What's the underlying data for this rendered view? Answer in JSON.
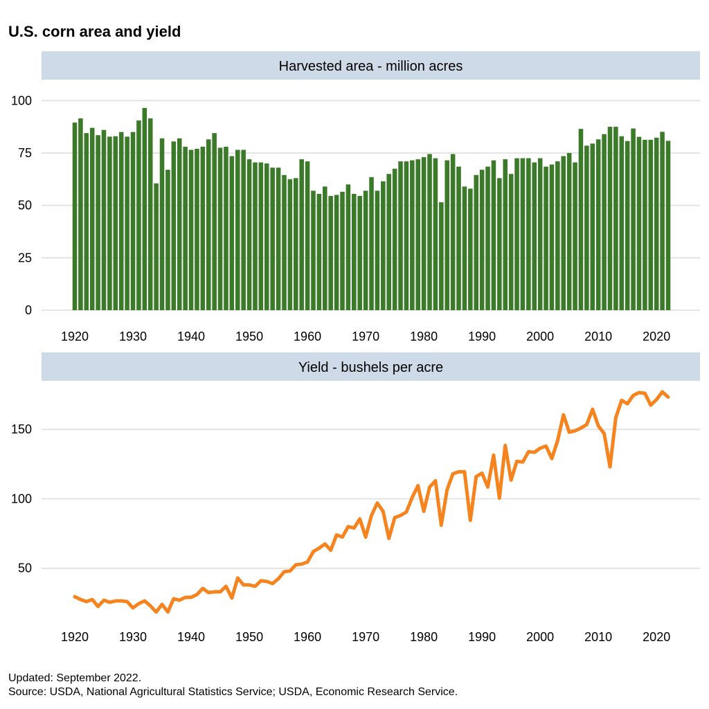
{
  "title": "U.S. corn area and yield",
  "footnote": {
    "updated": "Updated: September 2022.",
    "source": "Source: USDA, National Agricultural Statistics Service; USDA, Economic Research Service."
  },
  "colors": {
    "area_bar": "#3a7a28",
    "yield_line": "#f5841f",
    "strip": "#cfdae8",
    "grid": "#e4e4e4"
  },
  "chart_data": [
    {
      "type": "bar",
      "title": "Harvested area - million acres",
      "xlabel": "",
      "ylabel": "",
      "ylim": [
        0,
        110
      ],
      "yticks": [
        0,
        25,
        50,
        75,
        100
      ],
      "xticks": [
        1920,
        1930,
        1940,
        1950,
        1960,
        1970,
        1980,
        1990,
        2000,
        2010,
        2020
      ],
      "x": [
        1920,
        1921,
        1922,
        1923,
        1924,
        1925,
        1926,
        1927,
        1928,
        1929,
        1930,
        1931,
        1932,
        1933,
        1934,
        1935,
        1936,
        1937,
        1938,
        1939,
        1940,
        1941,
        1942,
        1943,
        1944,
        1945,
        1946,
        1947,
        1948,
        1949,
        1950,
        1951,
        1952,
        1953,
        1954,
        1955,
        1956,
        1957,
        1958,
        1959,
        1960,
        1961,
        1962,
        1963,
        1964,
        1965,
        1966,
        1967,
        1968,
        1969,
        1970,
        1971,
        1972,
        1973,
        1974,
        1975,
        1976,
        1977,
        1978,
        1979,
        1980,
        1981,
        1982,
        1983,
        1984,
        1985,
        1986,
        1987,
        1988,
        1989,
        1990,
        1991,
        1992,
        1993,
        1994,
        1995,
        1996,
        1997,
        1998,
        1999,
        2000,
        2001,
        2002,
        2003,
        2004,
        2005,
        2006,
        2007,
        2008,
        2009,
        2010,
        2011,
        2012,
        2013,
        2014,
        2015,
        2016,
        2017,
        2018,
        2019,
        2020,
        2021,
        2022
      ],
      "values": [
        89.5,
        91.5,
        84.5,
        87,
        83.5,
        86,
        82.8,
        83,
        85,
        82.8,
        85,
        90.5,
        96.5,
        91.5,
        60.5,
        82,
        67,
        80.5,
        82,
        78,
        76.5,
        77,
        78,
        81.5,
        84.5,
        77.5,
        78,
        73.5,
        76.5,
        76.5,
        72,
        70.5,
        70.5,
        70,
        68,
        68,
        64.5,
        62.5,
        63,
        72,
        71,
        57,
        55.5,
        59,
        54.5,
        55,
        56.5,
        60,
        55.5,
        54.5,
        57,
        63.5,
        57,
        61.5,
        65,
        67.5,
        71,
        71,
        71.5,
        72,
        73,
        74.5,
        72.5,
        51.5,
        71.5,
        74.5,
        68.5,
        59,
        58,
        64.5,
        67,
        68.5,
        71.5,
        63,
        72,
        65,
        72.5,
        72.5,
        72.5,
        70.5,
        72.5,
        68.5,
        69.5,
        71,
        73.5,
        75,
        70.5,
        86.5,
        78.5,
        79.5,
        81.5,
        84,
        87.5,
        87.5,
        83,
        80.7,
        86.7,
        82.7,
        81.3,
        81.3,
        82.3,
        85.1,
        80.8
      ]
    },
    {
      "type": "line",
      "title": "Yield - bushels per acre",
      "xlabel": "",
      "ylabel": "",
      "ylim": [
        0,
        185
      ],
      "yticks": [
        50,
        100,
        150
      ],
      "xticks": [
        1920,
        1930,
        1940,
        1950,
        1960,
        1970,
        1980,
        1990,
        2000,
        2010,
        2020
      ],
      "x": [
        1920,
        1921,
        1922,
        1923,
        1924,
        1925,
        1926,
        1927,
        1928,
        1929,
        1930,
        1931,
        1932,
        1933,
        1934,
        1935,
        1936,
        1937,
        1938,
        1939,
        1940,
        1941,
        1942,
        1943,
        1944,
        1945,
        1946,
        1947,
        1948,
        1949,
        1950,
        1951,
        1952,
        1953,
        1954,
        1955,
        1956,
        1957,
        1958,
        1959,
        1960,
        1961,
        1962,
        1963,
        1964,
        1965,
        1966,
        1967,
        1968,
        1969,
        1970,
        1971,
        1972,
        1973,
        1974,
        1975,
        1976,
        1977,
        1978,
        1979,
        1980,
        1981,
        1982,
        1983,
        1984,
        1985,
        1986,
        1987,
        1988,
        1989,
        1990,
        1991,
        1992,
        1993,
        1994,
        1995,
        1996,
        1997,
        1998,
        1999,
        2000,
        2001,
        2002,
        2003,
        2004,
        2005,
        2006,
        2007,
        2008,
        2009,
        2010,
        2011,
        2012,
        2013,
        2014,
        2015,
        2016,
        2017,
        2018,
        2019,
        2020,
        2021,
        2022
      ],
      "values": [
        29.5,
        27.5,
        26,
        27.5,
        22.5,
        27,
        25.5,
        26.5,
        26.5,
        26,
        21.5,
        24.5,
        26.5,
        23,
        18.5,
        24,
        18.5,
        28,
        27,
        29,
        29,
        31,
        35.5,
        32.5,
        33,
        33,
        37,
        28.5,
        43,
        38,
        38,
        37,
        41,
        40.5,
        39,
        42.5,
        47.5,
        48,
        52.5,
        53,
        54.5,
        62,
        64.5,
        67.5,
        63,
        74,
        72.5,
        80,
        79,
        85.5,
        72.5,
        88,
        97,
        91,
        71.5,
        86.5,
        88,
        90.5,
        101,
        109.5,
        91,
        108.5,
        113,
        81,
        106.5,
        118,
        119.5,
        119.5,
        84.5,
        116,
        118.5,
        108.5,
        131.5,
        100.5,
        138.5,
        113.5,
        127,
        126.5,
        134,
        133.5,
        136.5,
        138,
        129,
        142,
        160.5,
        148,
        149,
        151,
        153.5,
        164.5,
        152.5,
        147,
        123,
        158.5,
        171,
        168.5,
        174.5,
        176.5,
        176,
        167.5,
        171.5,
        177,
        173.3
      ]
    }
  ]
}
